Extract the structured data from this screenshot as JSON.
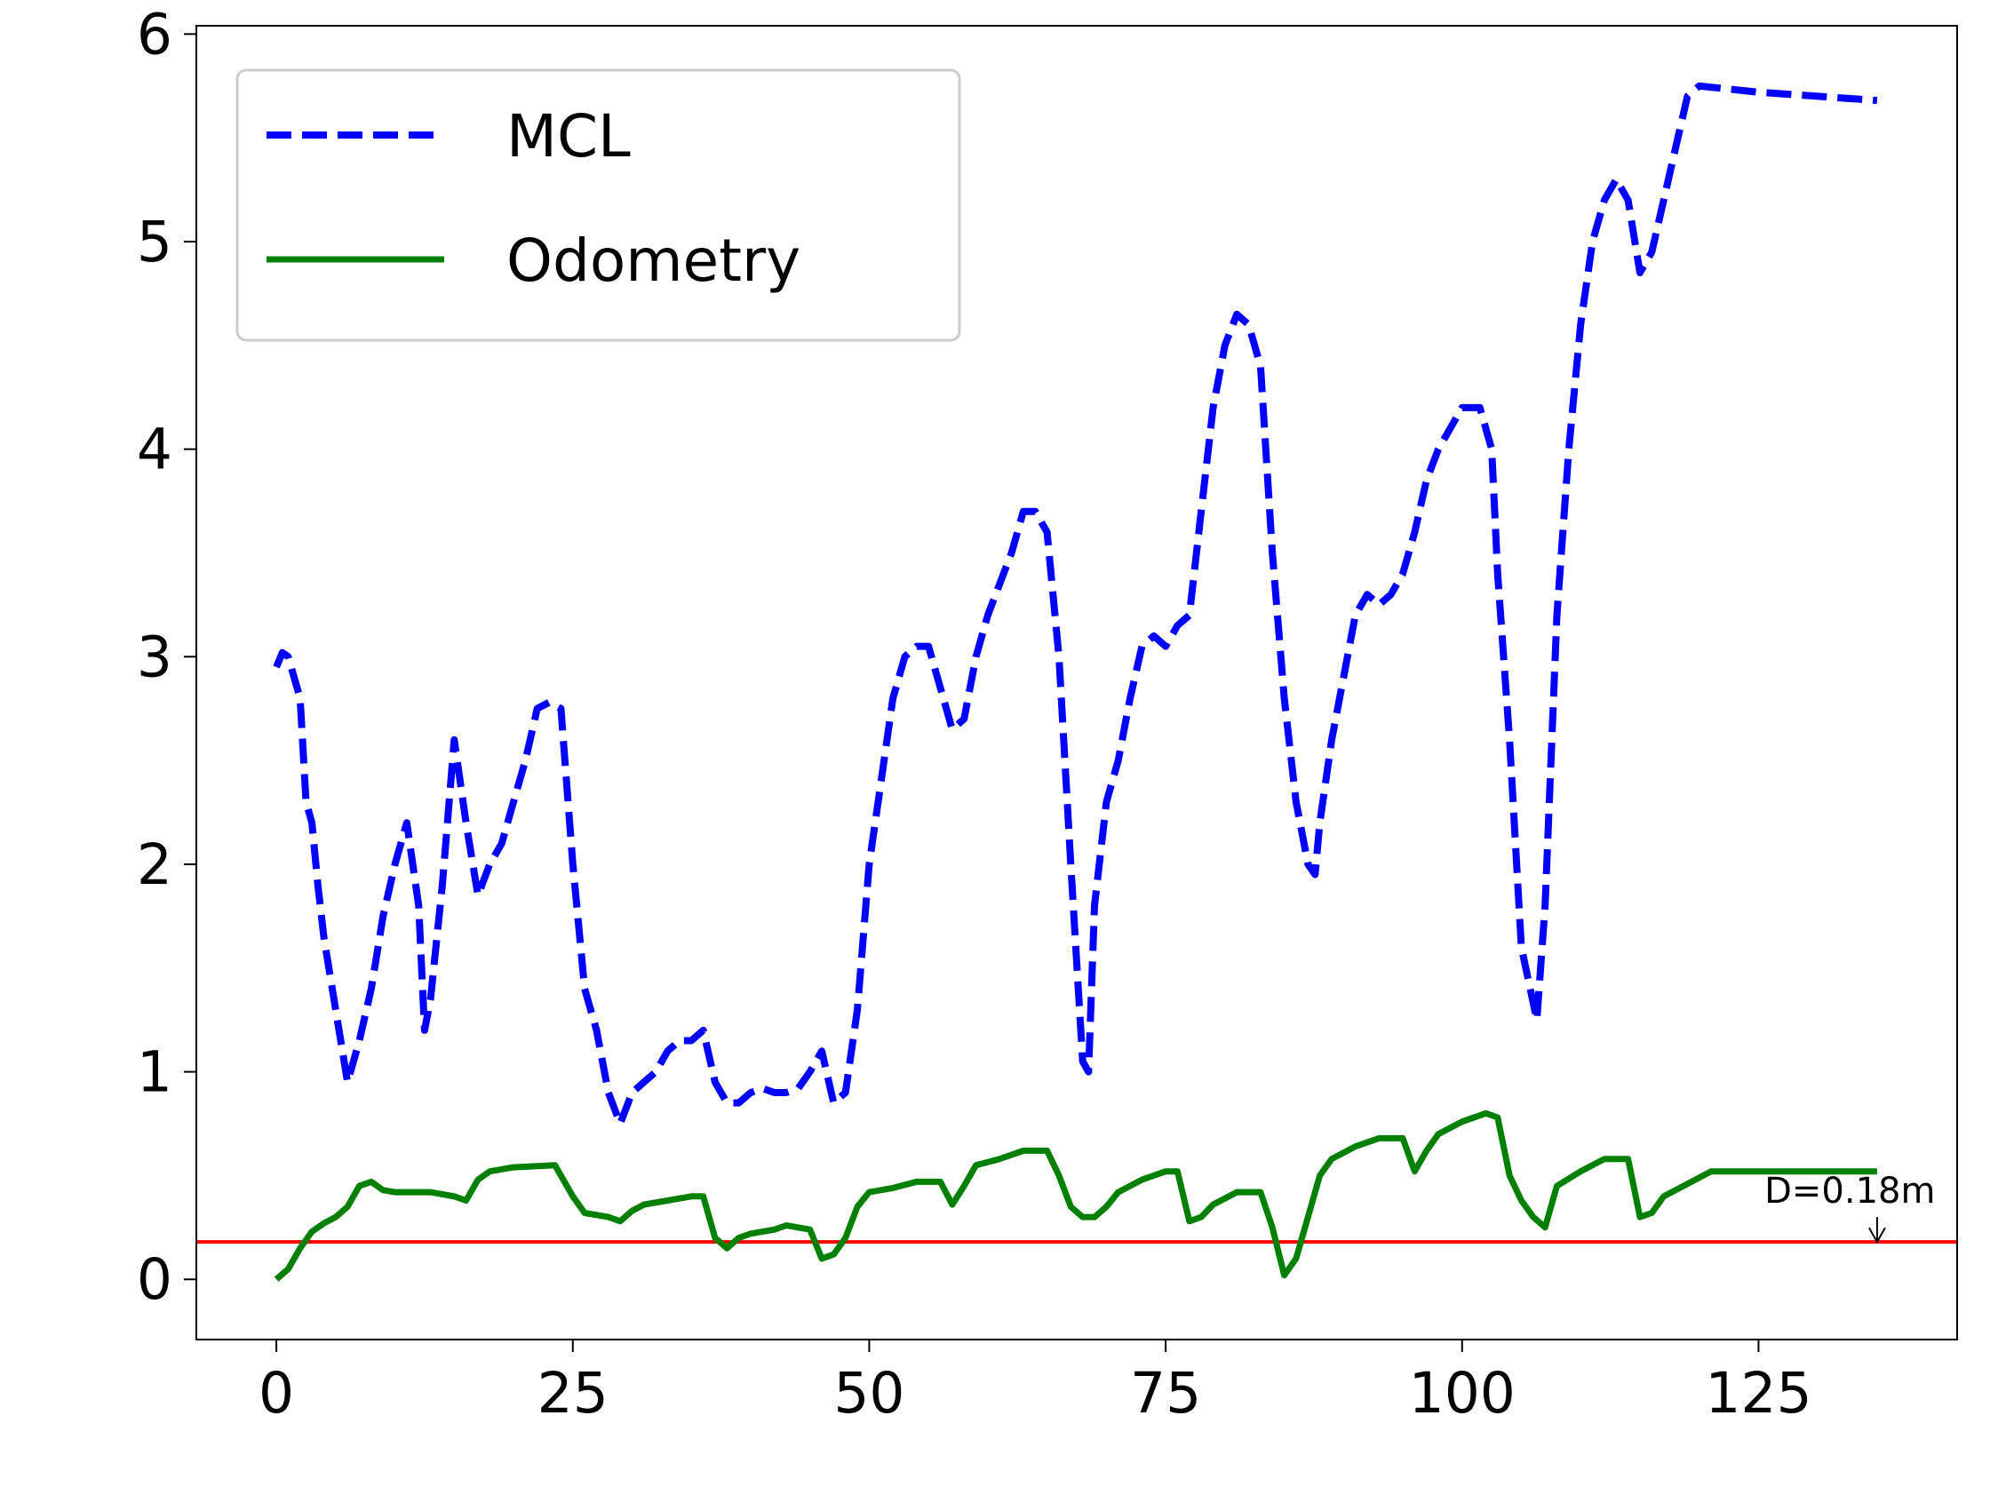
{
  "chart_data": {
    "type": "line",
    "series": [
      {
        "name": "MCL",
        "color": "#0000ff",
        "dash": true,
        "x": [
          0,
          0.5,
          1,
          2,
          2.5,
          3,
          3.5,
          4,
          5,
          6,
          7,
          8,
          9,
          10,
          11,
          12,
          12.5,
          13,
          14,
          15,
          16,
          17,
          18,
          19,
          20,
          21,
          22,
          23,
          24,
          25,
          26,
          27,
          28,
          29,
          30,
          31,
          32,
          33,
          34,
          35,
          36,
          37,
          38,
          39,
          40,
          41,
          42,
          43,
          44,
          45,
          46,
          47,
          48,
          49,
          50,
          51,
          52,
          53,
          54,
          55,
          56,
          57,
          58,
          59,
          60,
          61,
          62,
          63,
          64,
          65,
          66,
          67,
          68,
          68.5,
          69,
          70,
          71,
          72,
          73,
          74,
          75,
          76,
          77,
          78,
          79,
          80,
          81,
          82,
          83,
          84,
          85,
          86,
          87,
          87.6,
          88,
          89,
          90,
          91,
          92,
          93,
          94,
          95,
          96,
          97,
          98,
          99,
          100,
          101.5,
          102.5,
          103,
          104,
          105,
          106.3,
          107,
          108,
          109,
          110,
          111,
          112,
          113,
          114,
          115,
          116,
          117,
          118,
          119,
          120,
          125,
          130,
          135
        ],
        "values": [
          2.95,
          3.02,
          3.0,
          2.8,
          2.3,
          2.2,
          1.9,
          1.65,
          1.3,
          0.95,
          1.15,
          1.4,
          1.75,
          2.0,
          2.2,
          1.8,
          1.2,
          1.35,
          1.9,
          2.6,
          2.2,
          1.85,
          2.0,
          2.1,
          2.3,
          2.5,
          2.75,
          2.78,
          2.75,
          2.0,
          1.4,
          1.2,
          0.9,
          0.75,
          0.9,
          0.95,
          1.0,
          1.1,
          1.15,
          1.15,
          1.2,
          0.95,
          0.85,
          0.85,
          0.9,
          0.92,
          0.9,
          0.9,
          0.92,
          1.0,
          1.1,
          0.85,
          0.9,
          1.3,
          2.0,
          2.4,
          2.8,
          3.0,
          3.05,
          3.05,
          2.85,
          2.65,
          2.7,
          3.0,
          3.2,
          3.35,
          3.5,
          3.7,
          3.7,
          3.6,
          3.0,
          2.0,
          1.05,
          1.0,
          1.8,
          2.3,
          2.5,
          2.8,
          3.05,
          3.1,
          3.05,
          3.15,
          3.2,
          3.7,
          4.2,
          4.5,
          4.65,
          4.6,
          4.4,
          3.5,
          2.8,
          2.3,
          2.0,
          1.95,
          2.2,
          2.6,
          2.9,
          3.2,
          3.3,
          3.25,
          3.3,
          3.4,
          3.6,
          3.85,
          4.0,
          4.1,
          4.2,
          4.2,
          4.0,
          3.4,
          2.6,
          1.6,
          1.25,
          1.8,
          3.2,
          4.0,
          4.6,
          5.0,
          5.2,
          5.3,
          5.2,
          4.85,
          4.95,
          5.2,
          5.45,
          5.7,
          5.75,
          5.72,
          5.7,
          5.68
        ]
      },
      {
        "name": "Odometry",
        "color": "#008000",
        "dash": false,
        "x": [
          0,
          1,
          2,
          3,
          4,
          5,
          6,
          7,
          8,
          9,
          10,
          13,
          15,
          16,
          17,
          18,
          20,
          23.5,
          25,
          26,
          28,
          29,
          30,
          31,
          33,
          35,
          36,
          37,
          38,
          39,
          40,
          42,
          43,
          45,
          46,
          47,
          48,
          49,
          50,
          52,
          54,
          56,
          57,
          58,
          59,
          61,
          63,
          65,
          66,
          67,
          68,
          69,
          70,
          71,
          73,
          75,
          76,
          77,
          78,
          79,
          81,
          83,
          84,
          85,
          86,
          87,
          88,
          89,
          91,
          93,
          95,
          96,
          97,
          98,
          100,
          102,
          103,
          104,
          105,
          106,
          107,
          108,
          110,
          112,
          114,
          115,
          116,
          117,
          119,
          121,
          135
        ],
        "values": [
          0.0,
          0.05,
          0.15,
          0.23,
          0.27,
          0.3,
          0.35,
          0.45,
          0.47,
          0.43,
          0.42,
          0.42,
          0.4,
          0.38,
          0.48,
          0.52,
          0.54,
          0.55,
          0.4,
          0.32,
          0.3,
          0.28,
          0.33,
          0.36,
          0.38,
          0.4,
          0.4,
          0.2,
          0.15,
          0.2,
          0.22,
          0.24,
          0.26,
          0.24,
          0.1,
          0.12,
          0.2,
          0.35,
          0.42,
          0.44,
          0.47,
          0.47,
          0.36,
          0.45,
          0.55,
          0.58,
          0.62,
          0.62,
          0.5,
          0.35,
          0.3,
          0.3,
          0.35,
          0.42,
          0.48,
          0.52,
          0.52,
          0.28,
          0.3,
          0.36,
          0.42,
          0.42,
          0.25,
          0.02,
          0.1,
          0.3,
          0.5,
          0.58,
          0.64,
          0.68,
          0.68,
          0.52,
          0.62,
          0.7,
          0.76,
          0.8,
          0.78,
          0.5,
          0.38,
          0.3,
          0.25,
          0.45,
          0.52,
          0.58,
          0.58,
          0.3,
          0.32,
          0.4,
          0.46,
          0.52,
          0.52
        ]
      }
    ],
    "hline": {
      "value": 0.18,
      "color": "#ff0000"
    },
    "annotation": {
      "text": "D=0.18m",
      "x": 125.5,
      "y": 0.37,
      "xy": [
        135,
        0.18
      ]
    },
    "xlim": [
      -6.75,
      141.75
    ],
    "ylim": [
      -0.29,
      6.04
    ],
    "xticks": [
      0,
      25,
      50,
      75,
      100,
      125
    ],
    "yticks": [
      0,
      1,
      2,
      3,
      4,
      5,
      6
    ],
    "legend": "upper left",
    "grid": false
  }
}
